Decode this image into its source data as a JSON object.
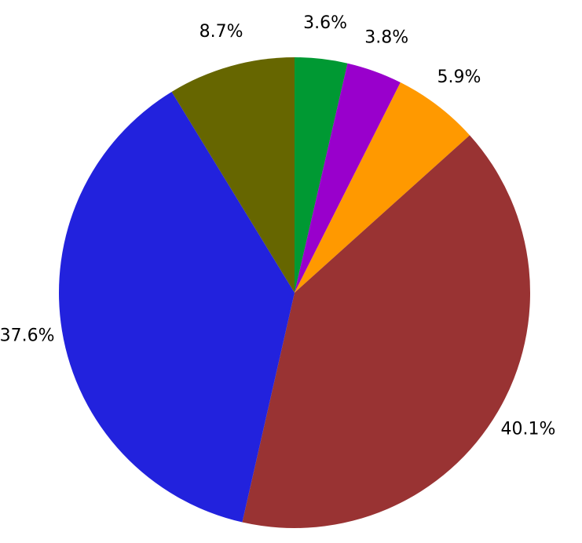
{
  "chart_data": {
    "type": "pie",
    "values": [
      3.6,
      3.8,
      5.9,
      40.1,
      37.6,
      8.7
    ],
    "value_labels": [
      "3.6%",
      "3.8%",
      "5.9%",
      "40.1%",
      "37.6%",
      "8.7%"
    ],
    "colors": [
      "#009933",
      "#9900cc",
      "#ff9900",
      "#993333",
      "#2222dd",
      "#666600"
    ]
  }
}
